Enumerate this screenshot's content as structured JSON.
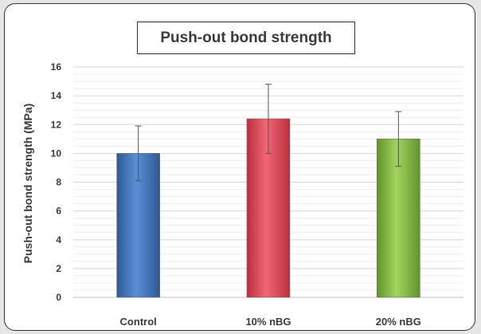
{
  "chart_data": {
    "type": "bar",
    "title": "Push-out bond strength",
    "ylabel": "Push-out bond strength (MPa)",
    "xlabel": "",
    "categories": [
      "Control",
      "10% nBG",
      "20% nBG"
    ],
    "values": [
      10.0,
      12.4,
      11.0
    ],
    "error": [
      1.9,
      2.4,
      1.9
    ],
    "ylim": [
      0,
      16
    ],
    "yticks": [
      "0",
      "2",
      "4",
      "6",
      "8",
      "10",
      "12",
      "14",
      "16"
    ],
    "colors": [
      "#4a7bc0",
      "#e84f62",
      "#8dc04a"
    ],
    "grid": true
  }
}
